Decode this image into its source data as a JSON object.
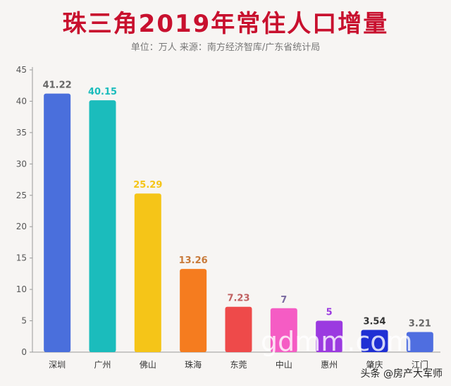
{
  "header": {
    "title": "珠三角2019年常住人口增量",
    "subtitle": "单位：万人 来源：南方经济智库/广东省统计局"
  },
  "watermark": {
    "site": "gdmm.com",
    "credit": "头条 @房产大军师"
  },
  "chart_data": {
    "type": "bar",
    "title": "珠三角2019年常住人口增量",
    "categories": [
      "深圳",
      "广州",
      "佛山",
      "珠海",
      "东莞",
      "中山",
      "惠州",
      "肇庆",
      "江门"
    ],
    "values": [
      41.22,
      40.15,
      25.29,
      13.26,
      7.23,
      7,
      5,
      3.54,
      3.21
    ],
    "labels": [
      "41.22",
      "40.15",
      "25.29",
      "13.26",
      "7.23",
      "7",
      "5",
      "3.54",
      "3.21"
    ],
    "bar_colors": [
      "#4a6fdc",
      "#1bbcbc",
      "#f5c518",
      "#f57c1f",
      "#ee4a4a",
      "#f55cc4",
      "#9b3ae0",
      "#1f2fd4",
      "#4f6ee0"
    ],
    "label_colors": [
      "#666666",
      "#1bbcbc",
      "#f5c518",
      "#c87a3a",
      "#c06060",
      "#7a6aa0",
      "#9b3ae0",
      "#333333",
      "#666666"
    ],
    "ylim": [
      0,
      45
    ],
    "yticks": [
      0,
      5,
      10,
      15,
      20,
      25,
      30,
      35,
      40,
      45
    ],
    "xlabel": "",
    "ylabel": "",
    "grid": false,
    "legend": "none"
  }
}
